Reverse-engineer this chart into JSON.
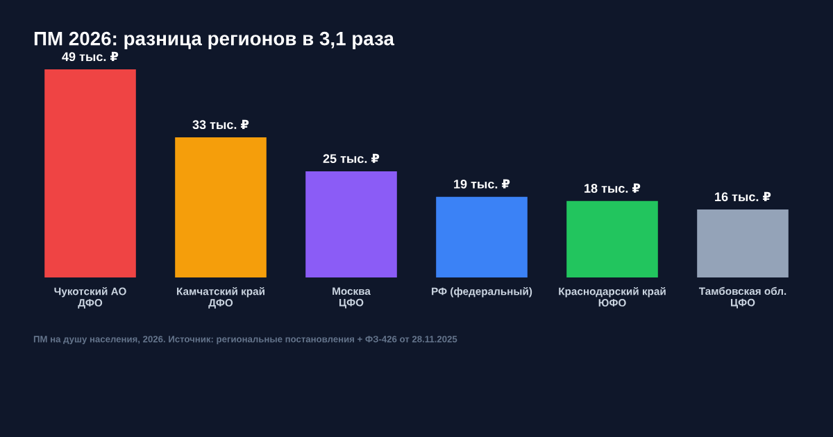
{
  "chart_data": {
    "type": "bar",
    "title": "ПМ 2026: разница регионов в 3,1 раза",
    "categories": [
      "Чукотский АО\nДФО",
      "Камчатский край\nДФО",
      "Москва\nЦФО",
      "РФ (федеральный)",
      "Краснодарский край\nЮФО",
      "Тамбовская обл.\nЦФО"
    ],
    "values": [
      49,
      33,
      25,
      19,
      18,
      16
    ],
    "value_labels": [
      "49 тыс. ₽",
      "33 тыс. ₽",
      "25 тыс. ₽",
      "19 тыс. ₽",
      "18 тыс. ₽",
      "16 тыс. ₽"
    ],
    "colors": [
      "#ef4444",
      "#f59e0b",
      "#8b5cf6",
      "#3b82f6",
      "#22c55e",
      "#94a3b8"
    ],
    "annotations": [
      "ПМ на душу населения, 2026. Источник: региональные постановления + ФЗ-426 от 28.11.2025"
    ],
    "grid": false,
    "legend": false
  }
}
